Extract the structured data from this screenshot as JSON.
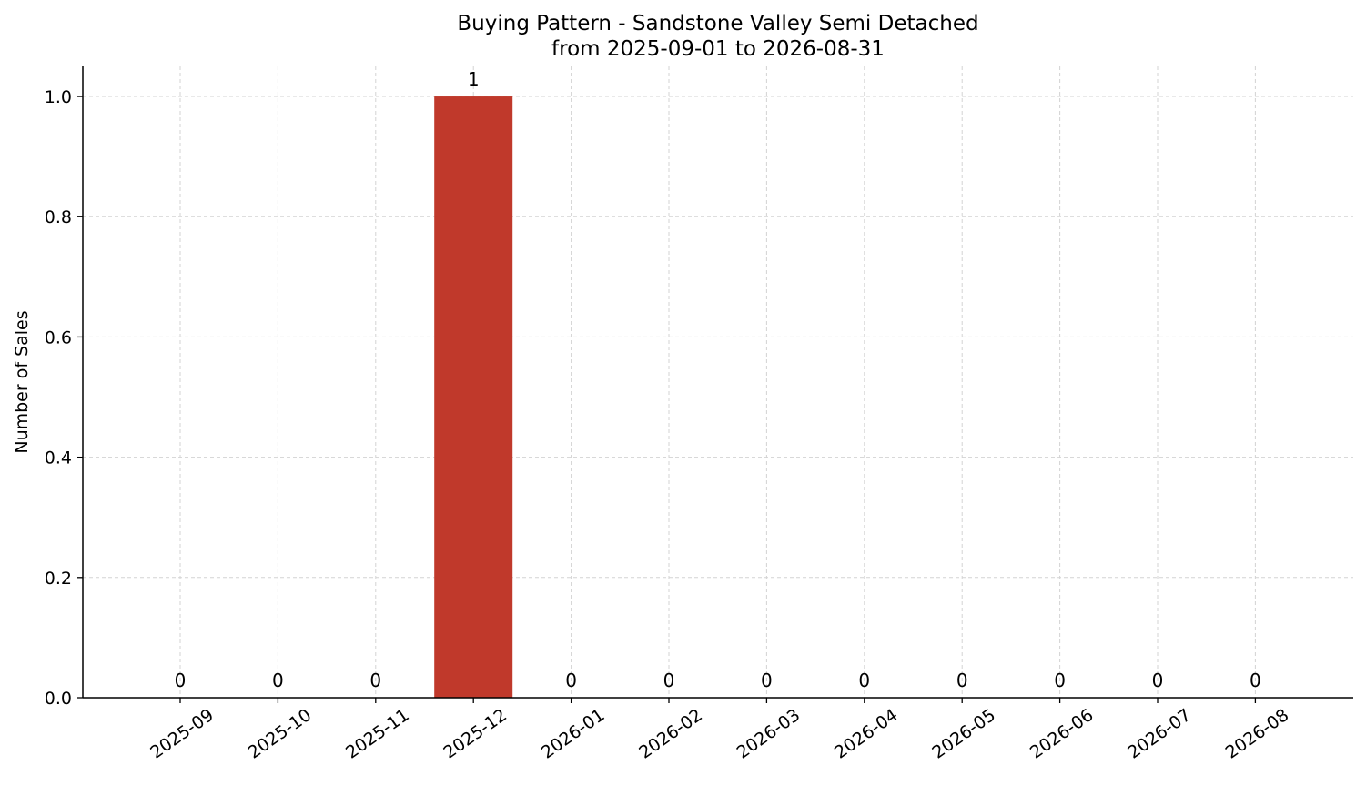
{
  "chart_data": {
    "type": "bar",
    "title": "Buying Pattern - Sandstone Valley Semi Detached",
    "subtitle": "from 2025-09-01 to 2026-08-31",
    "xlabel": "",
    "ylabel": "Number of Sales",
    "categories": [
      "2025-09",
      "2025-10",
      "2025-11",
      "2025-12",
      "2026-01",
      "2026-02",
      "2026-03",
      "2026-04",
      "2026-05",
      "2026-06",
      "2026-07",
      "2026-08"
    ],
    "values": [
      0,
      0,
      0,
      1,
      0,
      0,
      0,
      0,
      0,
      0,
      0,
      0
    ],
    "data_labels": [
      "0",
      "0",
      "0",
      "1",
      "0",
      "0",
      "0",
      "0",
      "0",
      "0",
      "0",
      "0"
    ],
    "ylim": [
      0,
      1.05
    ],
    "yticks": [
      0.0,
      0.2,
      0.4,
      0.6,
      0.8,
      1.0
    ],
    "ytick_labels": [
      "0.0",
      "0.2",
      "0.4",
      "0.6",
      "0.8",
      "1.0"
    ],
    "bar_color": "#c0392b",
    "grid": true,
    "legend": false
  }
}
